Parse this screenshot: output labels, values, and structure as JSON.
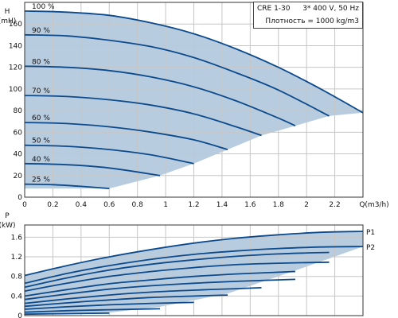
{
  "info_box": {
    "model": "CRE 1-30",
    "supply": "3* 400 V, 50 Hz",
    "density": "Плотность = 1000 kg/m3"
  },
  "chart_data": [
    {
      "type": "line",
      "name": "head",
      "ylabel_lines": [
        "H",
        "(mH)"
      ],
      "xlabel": "Q(m3/h)",
      "xlim": [
        0,
        2.4
      ],
      "ylim": [
        0,
        180
      ],
      "x_ticks": [
        0,
        0.2,
        0.4,
        0.6,
        0.8,
        1,
        1.2,
        1.4,
        1.6,
        1.8,
        2,
        2.2
      ],
      "x_tick_labels": [
        "0",
        "0.2",
        "0.4",
        "0.6",
        "0.8",
        "1",
        "1.2",
        "1.4",
        "1.6",
        "1.8",
        "2",
        "2.2"
      ],
      "y_ticks": [
        0,
        20,
        40,
        60,
        80,
        100,
        120,
        140,
        160
      ],
      "y_tick_labels": [
        "0",
        "20",
        "40",
        "60",
        "80",
        "100",
        "120",
        "140",
        "160"
      ],
      "grid": true,
      "series": [
        {
          "name": "100 %",
          "x": [
            0,
            0.3,
            0.6,
            0.9,
            1.2,
            1.5,
            1.8,
            2.1,
            2.4
          ],
          "y": [
            172,
            171,
            168,
            161,
            151,
            137,
            120,
            100,
            78
          ]
        },
        {
          "name": "90 %",
          "x": [
            0,
            0.3,
            0.6,
            0.9,
            1.2,
            1.5,
            1.8,
            2.16
          ],
          "y": [
            150,
            149,
            145,
            139,
            129,
            115,
            99,
            75
          ]
        },
        {
          "name": "80 %",
          "x": [
            0,
            0.3,
            0.6,
            0.9,
            1.2,
            1.5,
            1.8,
            1.92
          ],
          "y": [
            121,
            120,
            117,
            111,
            102,
            89,
            73,
            66
          ]
        },
        {
          "name": "70 %",
          "x": [
            0,
            0.3,
            0.6,
            0.9,
            1.2,
            1.5,
            1.68
          ],
          "y": [
            94,
            93,
            90,
            85,
            77,
            65,
            57
          ]
        },
        {
          "name": "60 %",
          "x": [
            0,
            0.3,
            0.6,
            0.9,
            1.2,
            1.44
          ],
          "y": [
            69,
            68,
            65,
            60,
            53,
            44
          ]
        },
        {
          "name": "50 %",
          "x": [
            0,
            0.3,
            0.6,
            0.9,
            1.2
          ],
          "y": [
            48,
            47,
            44,
            39,
            31
          ]
        },
        {
          "name": "40 %",
          "x": [
            0,
            0.3,
            0.6,
            0.96
          ],
          "y": [
            31,
            30,
            27,
            20
          ]
        },
        {
          "name": "25 %",
          "x": [
            0,
            0.2,
            0.4,
            0.6
          ],
          "y": [
            12,
            11.5,
            10,
            8
          ]
        }
      ],
      "envelope": {
        "x": [
          0,
          0.3,
          0.6,
          0.9,
          1.2,
          1.5,
          1.8,
          2.1,
          2.4,
          2.16,
          1.92,
          1.68,
          1.44,
          1.2,
          0.96,
          0.6,
          0
        ],
        "y": [
          172,
          171,
          168,
          161,
          151,
          137,
          120,
          100,
          78,
          75,
          66,
          57,
          44,
          31,
          20,
          8,
          8
        ]
      }
    },
    {
      "type": "line",
      "name": "power",
      "ylabel_lines": [
        "P",
        "(kW)"
      ],
      "xlim": [
        0,
        2.4
      ],
      "ylim": [
        0,
        1.85
      ],
      "x_ticks": [
        0,
        0.2,
        0.4,
        0.6,
        0.8,
        1,
        1.2,
        1.4,
        1.6,
        1.8,
        2,
        2.2
      ],
      "y_ticks": [
        0,
        0.4,
        0.8,
        1.2,
        1.6
      ],
      "y_tick_labels": [
        "0",
        "0.4",
        "0.8",
        "1.2",
        "1.6"
      ],
      "grid": true,
      "series": [
        {
          "name": "P1",
          "x": [
            0,
            0.3,
            0.6,
            0.9,
            1.2,
            1.5,
            1.8,
            2.1,
            2.4
          ],
          "y": [
            0.82,
            1.02,
            1.2,
            1.35,
            1.48,
            1.58,
            1.65,
            1.7,
            1.72
          ]
        },
        {
          "name": "P2",
          "x": [
            0,
            0.3,
            0.6,
            0.9,
            1.2,
            1.5,
            1.8,
            2.1,
            2.4
          ],
          "y": [
            0.66,
            0.86,
            1.02,
            1.15,
            1.25,
            1.32,
            1.37,
            1.4,
            1.41
          ]
        },
        {
          "name": "",
          "x": [
            0,
            0.3,
            0.6,
            0.9,
            1.2,
            1.5,
            1.8,
            2.16
          ],
          "y": [
            0.58,
            0.77,
            0.93,
            1.05,
            1.14,
            1.21,
            1.26,
            1.29
          ]
        },
        {
          "name": "",
          "x": [
            0,
            0.3,
            0.6,
            0.9,
            1.2,
            1.5,
            1.8,
            2.16
          ],
          "y": [
            0.5,
            0.66,
            0.8,
            0.9,
            0.98,
            1.04,
            1.07,
            1.09
          ]
        },
        {
          "name": "",
          "x": [
            0,
            0.3,
            0.6,
            0.9,
            1.2,
            1.5,
            1.92
          ],
          "y": [
            0.4,
            0.53,
            0.65,
            0.73,
            0.8,
            0.85,
            0.9
          ]
        },
        {
          "name": "",
          "x": [
            0,
            0.3,
            0.6,
            0.9,
            1.2,
            1.5,
            1.92
          ],
          "y": [
            0.33,
            0.44,
            0.54,
            0.61,
            0.66,
            0.7,
            0.74
          ]
        },
        {
          "name": "",
          "x": [
            0,
            0.3,
            0.6,
            0.9,
            1.2,
            1.5,
            1.68
          ],
          "y": [
            0.25,
            0.34,
            0.42,
            0.48,
            0.52,
            0.55,
            0.57
          ]
        },
        {
          "name": "",
          "x": [
            0,
            0.3,
            0.6,
            0.9,
            1.2,
            1.44
          ],
          "y": [
            0.19,
            0.26,
            0.32,
            0.37,
            0.4,
            0.42
          ]
        },
        {
          "name": "",
          "x": [
            0,
            0.3,
            0.6,
            0.9,
            1.2
          ],
          "y": [
            0.13,
            0.18,
            0.22,
            0.25,
            0.27
          ]
        },
        {
          "name": "",
          "x": [
            0,
            0.3,
            0.6,
            0.96
          ],
          "y": [
            0.07,
            0.1,
            0.12,
            0.14
          ]
        },
        {
          "name": "",
          "x": [
            0,
            0.3,
            0.6
          ],
          "y": [
            0.03,
            0.04,
            0.05
          ]
        }
      ],
      "envelope": {
        "x": [
          0,
          0.3,
          0.6,
          0.9,
          1.2,
          1.5,
          1.8,
          2.1,
          2.4,
          2.4,
          1.92,
          1.44,
          0.96,
          0.6,
          0
        ],
        "y": [
          0.82,
          1.02,
          1.2,
          1.35,
          1.48,
          1.58,
          1.65,
          1.7,
          1.72,
          1.41,
          0.92,
          0.45,
          0.18,
          0.06,
          0.02
        ]
      }
    }
  ],
  "colors": {
    "fill": "#b8cce0",
    "line": "#0c4a8c",
    "grid": "#c6c6c6",
    "axis": "#333333"
  }
}
